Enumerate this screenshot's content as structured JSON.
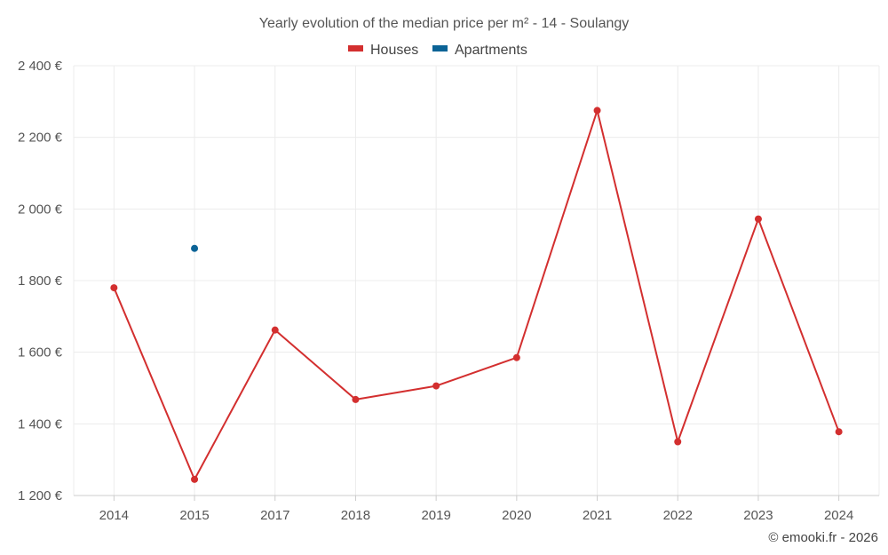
{
  "chart_data": {
    "type": "line",
    "title": "Yearly evolution of the median price per m² - 14 - Soulangy",
    "categories": [
      "2014",
      "2015",
      "2017",
      "2018",
      "2019",
      "2020",
      "2021",
      "2022",
      "2023",
      "2024"
    ],
    "series": [
      {
        "name": "Houses",
        "color": "#d32f2f",
        "values": [
          1780,
          1245,
          1662,
          1468,
          1506,
          1585,
          2275,
          1350,
          1972,
          1378
        ]
      },
      {
        "name": "Apartments",
        "color": "#0b6396",
        "values": [
          null,
          1890,
          null,
          null,
          null,
          null,
          null,
          null,
          null,
          null
        ]
      }
    ],
    "ylim": [
      1200,
      2400
    ],
    "yticks": [
      1200,
      1400,
      1600,
      1800,
      2000,
      2200,
      2400
    ],
    "ytick_labels": [
      "1 200 €",
      "1 400 €",
      "1 600 €",
      "1 800 €",
      "2 000 €",
      "2 200 €",
      "2 400 €"
    ],
    "xlabel": "",
    "ylabel": "",
    "grid": true,
    "legend_position": "top-center",
    "credit": "© emooki.fr - 2026"
  }
}
